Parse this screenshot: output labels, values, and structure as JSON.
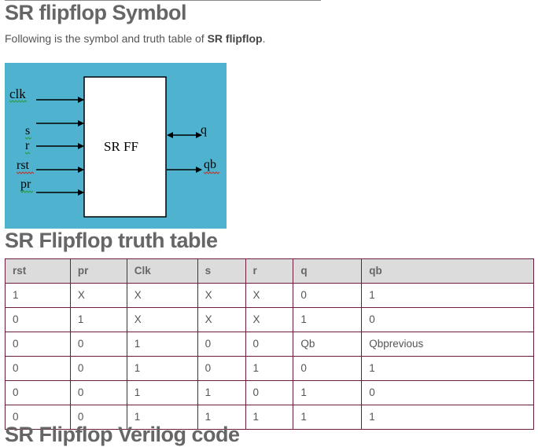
{
  "heading1": "SR flipflop Symbol",
  "intro": {
    "before": "Following is the symbol and truth table of ",
    "bold": "SR flipflop",
    "after": "."
  },
  "diagram": {
    "block_label": "SR FF",
    "inputs": [
      "clk",
      "s",
      "r",
      "rst",
      "pr"
    ],
    "outputs": [
      "q",
      "qb"
    ],
    "background": "#4fb3cf"
  },
  "heading2": "SR Flipflop truth table",
  "table": {
    "headers": [
      "rst",
      "pr",
      "Clk",
      "s",
      "r",
      "q",
      "qb"
    ],
    "rows": [
      [
        "1",
        "X",
        "X",
        "X",
        "X",
        "0",
        "1"
      ],
      [
        "0",
        "1",
        "X",
        "X",
        "X",
        "1",
        "0"
      ],
      [
        "0",
        "0",
        "1",
        "0",
        "0",
        "Qb",
        "Qbprevious"
      ],
      [
        "0",
        "0",
        "1",
        "0",
        "1",
        "0",
        "1"
      ],
      [
        "0",
        "0",
        "1",
        "1",
        "0",
        "1",
        "0"
      ],
      [
        "0",
        "0",
        "1",
        "1",
        "1",
        "1",
        "1"
      ]
    ]
  },
  "heading3": "SR Flipflop Verilog code"
}
